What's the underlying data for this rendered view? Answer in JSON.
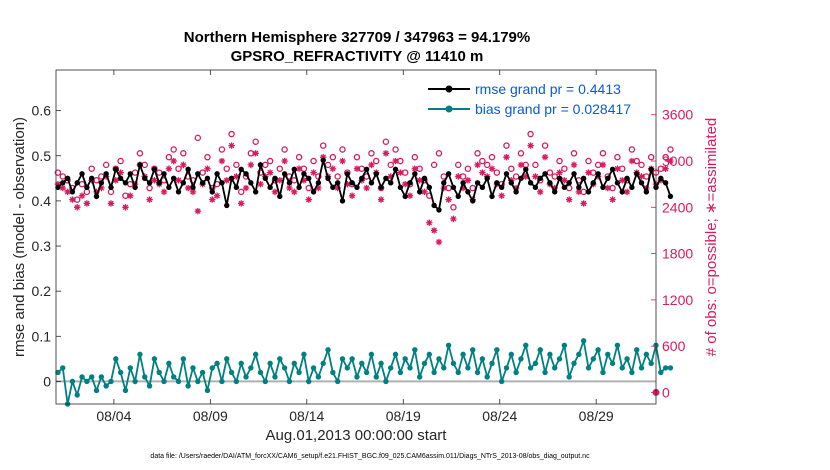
{
  "chart_data": {
    "type": "line",
    "title_line1": "Northern Hemisphere 327709 / 347963 = 94.179%",
    "title_line2": "GPSRO_REFRACTIVITY @ 11410 m",
    "xlabel": "Aug.01,2013 00:00:00 start",
    "ylabel": "rmse and bias (model - observation)",
    "y2label": "# of obs: o=possible; ∗=assimilated",
    "footer": "data file: /Users/raeder/DAI/ATM_forcXX/CAM6_setup/f.e21.FHIST_BGC.f09_025.CAM6assim.011/Diags_NTrS_2013-08/obs_diag_output.nc",
    "xlim": [
      1.0,
      32.1
    ],
    "ylim": [
      -0.05,
      0.69
    ],
    "y2lim": [
      -150,
      4180
    ],
    "x_ticks": [
      4,
      9,
      14,
      19,
      24,
      29
    ],
    "x_tick_labels": [
      "08/04",
      "08/09",
      "08/14",
      "08/19",
      "08/24",
      "08/29"
    ],
    "y_ticks": [
      0,
      0.1,
      0.2,
      0.3,
      0.4,
      0.5,
      0.6
    ],
    "y_tick_labels": [
      "0",
      "0.1",
      "0.2",
      "0.3",
      "0.4",
      "0.5",
      "0.6"
    ],
    "y2_ticks": [
      0,
      600,
      1200,
      1800,
      2400,
      3000,
      3600
    ],
    "y2_tick_labels": [
      "0",
      "600",
      "1200",
      "1800",
      "2400",
      "3000",
      "3600"
    ],
    "colors": {
      "rmse": "#000000",
      "bias": "#008080",
      "obs": "#d81b60",
      "zero": "#b0b0b0",
      "legend_text": "#0a5ad6"
    },
    "legend": [
      {
        "name": "rmse grand pr = 0.4413",
        "series": "rmse"
      },
      {
        "name": "bias grand pr = 0.028417",
        "series": "bias"
      }
    ],
    "legend_position": "top-right",
    "series": [
      {
        "name": "rmse",
        "values": [
          0.43,
          0.44,
          0.45,
          0.42,
          0.44,
          0.46,
          0.43,
          0.45,
          0.41,
          0.44,
          0.46,
          0.43,
          0.47,
          0.45,
          0.44,
          0.46,
          0.43,
          0.48,
          0.45,
          0.44,
          0.47,
          0.44,
          0.46,
          0.43,
          0.45,
          0.42,
          0.44,
          0.47,
          0.43,
          0.46,
          0.44,
          0.45,
          0.42,
          0.46,
          0.44,
          0.39,
          0.45,
          0.43,
          0.47,
          0.46,
          0.44,
          0.42,
          0.48,
          0.45,
          0.43,
          0.45,
          0.41,
          0.46,
          0.44,
          0.47,
          0.43,
          0.46,
          0.45,
          0.42,
          0.44,
          0.49,
          0.45,
          0.43,
          0.44,
          0.4,
          0.46,
          0.44,
          0.43,
          0.45,
          0.47,
          0.44,
          0.46,
          0.43,
          0.45,
          0.44,
          0.47,
          0.43,
          0.41,
          0.44,
          0.46,
          0.42,
          0.45,
          0.43,
          0.39,
          0.38,
          0.44,
          0.46,
          0.43,
          0.41,
          0.44,
          0.42,
          0.4,
          0.44,
          0.43,
          0.45,
          0.41,
          0.44,
          0.43,
          0.46,
          0.44,
          0.42,
          0.45,
          0.47,
          0.44,
          0.43,
          0.45,
          0.46,
          0.44,
          0.42,
          0.45,
          0.43,
          0.44,
          0.46,
          0.43,
          0.45,
          0.42,
          0.44,
          0.46,
          0.43,
          0.45,
          0.47,
          0.44,
          0.42,
          0.45,
          0.43,
          0.46,
          0.44,
          0.42,
          0.47,
          0.43,
          0.45,
          0.44,
          0.41
        ]
      },
      {
        "name": "bias",
        "values": [
          0.02,
          0.03,
          -0.05,
          0.0,
          -0.03,
          0.01,
          0.0,
          0.01,
          -0.02,
          0.01,
          -0.01,
          0.0,
          0.05,
          0.02,
          -0.02,
          0.03,
          0.0,
          0.06,
          0.01,
          -0.01,
          0.05,
          0.02,
          0.0,
          0.04,
          0.01,
          0.0,
          0.05,
          -0.01,
          0.03,
          0.0,
          0.02,
          -0.02,
          0.03,
          0.04,
          0.0,
          0.05,
          0.02,
          0.0,
          0.04,
          0.01,
          0.03,
          0.06,
          0.02,
          0.0,
          0.04,
          0.01,
          0.05,
          0.03,
          0.0,
          0.04,
          0.02,
          0.06,
          0.0,
          0.03,
          0.01,
          0.04,
          0.07,
          0.02,
          0.0,
          0.05,
          0.03,
          0.05,
          0.01,
          0.04,
          0.02,
          0.06,
          0.01,
          0.04,
          0.0,
          0.03,
          0.06,
          0.02,
          0.05,
          0.03,
          0.07,
          0.01,
          0.04,
          0.06,
          0.02,
          0.05,
          0.03,
          0.08,
          0.04,
          0.02,
          0.06,
          0.03,
          0.07,
          0.02,
          0.05,
          0.01,
          0.04,
          0.07,
          0.0,
          0.03,
          0.06,
          0.02,
          0.05,
          0.08,
          0.03,
          0.04,
          0.07,
          0.02,
          0.06,
          0.03,
          0.05,
          0.08,
          0.01,
          0.04,
          0.06,
          0.09,
          0.03,
          0.05,
          0.07,
          0.02,
          0.06,
          0.04,
          0.08,
          0.03,
          0.05,
          0.02,
          0.07,
          0.03,
          0.06,
          0.04,
          0.08,
          0.02,
          0.03,
          0.03
        ]
      },
      {
        "name": "obs_possible",
        "values": [
          2850,
          2800,
          2750,
          2650,
          2500,
          2700,
          2600,
          2900,
          2750,
          2800,
          2950,
          2600,
          2900,
          3000,
          2550,
          2700,
          2850,
          3100,
          2950,
          2650,
          2900,
          2850,
          2750,
          3050,
          3150,
          2900,
          3100,
          2800,
          2750,
          3300,
          2850,
          3050,
          2650,
          2700,
          3150,
          2900,
          3350,
          2950,
          2600,
          2800,
          3100,
          3250,
          2850,
          2950,
          3000,
          2750,
          2900,
          3150,
          2800,
          2750,
          3050,
          2900,
          2650,
          3000,
          2800,
          3200,
          2950,
          3050,
          2800,
          3150,
          2850,
          2700,
          3050,
          2900,
          2800,
          3100,
          3000,
          2650,
          3250,
          2950,
          3150,
          3000,
          2850,
          2700,
          3050,
          2900,
          2750,
          2550,
          2950,
          3100,
          2800,
          2650,
          2400,
          2950,
          2800,
          2900,
          2650,
          3100,
          3000,
          2950,
          3050,
          2850,
          2700,
          3200,
          2900,
          2800,
          3100,
          2950,
          3350,
          2950,
          2750,
          3200,
          2850,
          2800,
          3000,
          2900,
          2650,
          3100,
          2750,
          2600,
          3000,
          2850,
          2950,
          3100,
          2800,
          2650,
          3050,
          2900,
          2750,
          3150,
          3000,
          2950,
          2800,
          3050,
          2850,
          2900,
          3050,
          3150
        ]
      },
      {
        "name": "obs_assimilated",
        "values": [
          2700,
          2650,
          2600,
          2500,
          2400,
          2550,
          2450,
          2750,
          2600,
          2650,
          2800,
          2450,
          2750,
          2850,
          2400,
          2550,
          2700,
          2950,
          2800,
          2500,
          2750,
          2700,
          2600,
          2900,
          3000,
          2750,
          2950,
          2650,
          2600,
          2350,
          2700,
          2900,
          2500,
          2550,
          3000,
          2750,
          3200,
          2800,
          2450,
          2650,
          2950,
          3100,
          2700,
          2800,
          2850,
          2600,
          2750,
          3000,
          2650,
          2600,
          2900,
          2750,
          2500,
          2850,
          2650,
          3050,
          2800,
          2900,
          2650,
          3000,
          2700,
          2550,
          2900,
          2750,
          2650,
          2950,
          2850,
          2500,
          3100,
          2800,
          3000,
          2850,
          2700,
          2550,
          2900,
          2750,
          2600,
          2200,
          2100,
          1950,
          2650,
          2500,
          2250,
          2800,
          2650,
          2750,
          2500,
          2950,
          2850,
          2800,
          2900,
          2700,
          2550,
          3050,
          2750,
          2650,
          2950,
          2800,
          3200,
          2800,
          2600,
          3050,
          2700,
          2650,
          2850,
          2750,
          2500,
          2950,
          2600,
          2450,
          2850,
          2700,
          2800,
          2950,
          2650,
          2500,
          2900,
          2750,
          2600,
          3000,
          2850,
          2800,
          2650,
          2900,
          2700,
          2750,
          2900,
          3000
        ]
      }
    ]
  }
}
